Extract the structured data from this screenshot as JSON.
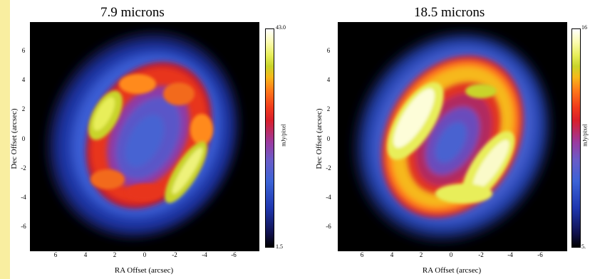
{
  "panels": [
    {
      "title": "7.9 microns",
      "xlabel": "RA Offset (arcsec)",
      "ylabel": "Dec Offset (arcsec)",
      "x_ticks": [
        "6",
        "4",
        "2",
        "0",
        "-2",
        "-4",
        "-6"
      ],
      "y_ticks": [
        "6",
        "4",
        "2",
        "0",
        "-2",
        "-4",
        "-6"
      ],
      "colorbar": {
        "max": "43.0",
        "min": "1.5",
        "unit": "mJy/pixel"
      }
    },
    {
      "title": "18.5 microns",
      "xlabel": "RA Offset (arcsec)",
      "ylabel": "Dec Offset (arcsec)",
      "x_ticks": [
        "6",
        "4",
        "2",
        "0",
        "-2",
        "-4",
        "-6"
      ],
      "y_ticks": [
        "6",
        "4",
        "2",
        "0",
        "-2",
        "-4",
        "-6"
      ],
      "colorbar": {
        "max": "16",
        "min": "5.",
        "unit": "mJy/pixel"
      }
    }
  ]
}
